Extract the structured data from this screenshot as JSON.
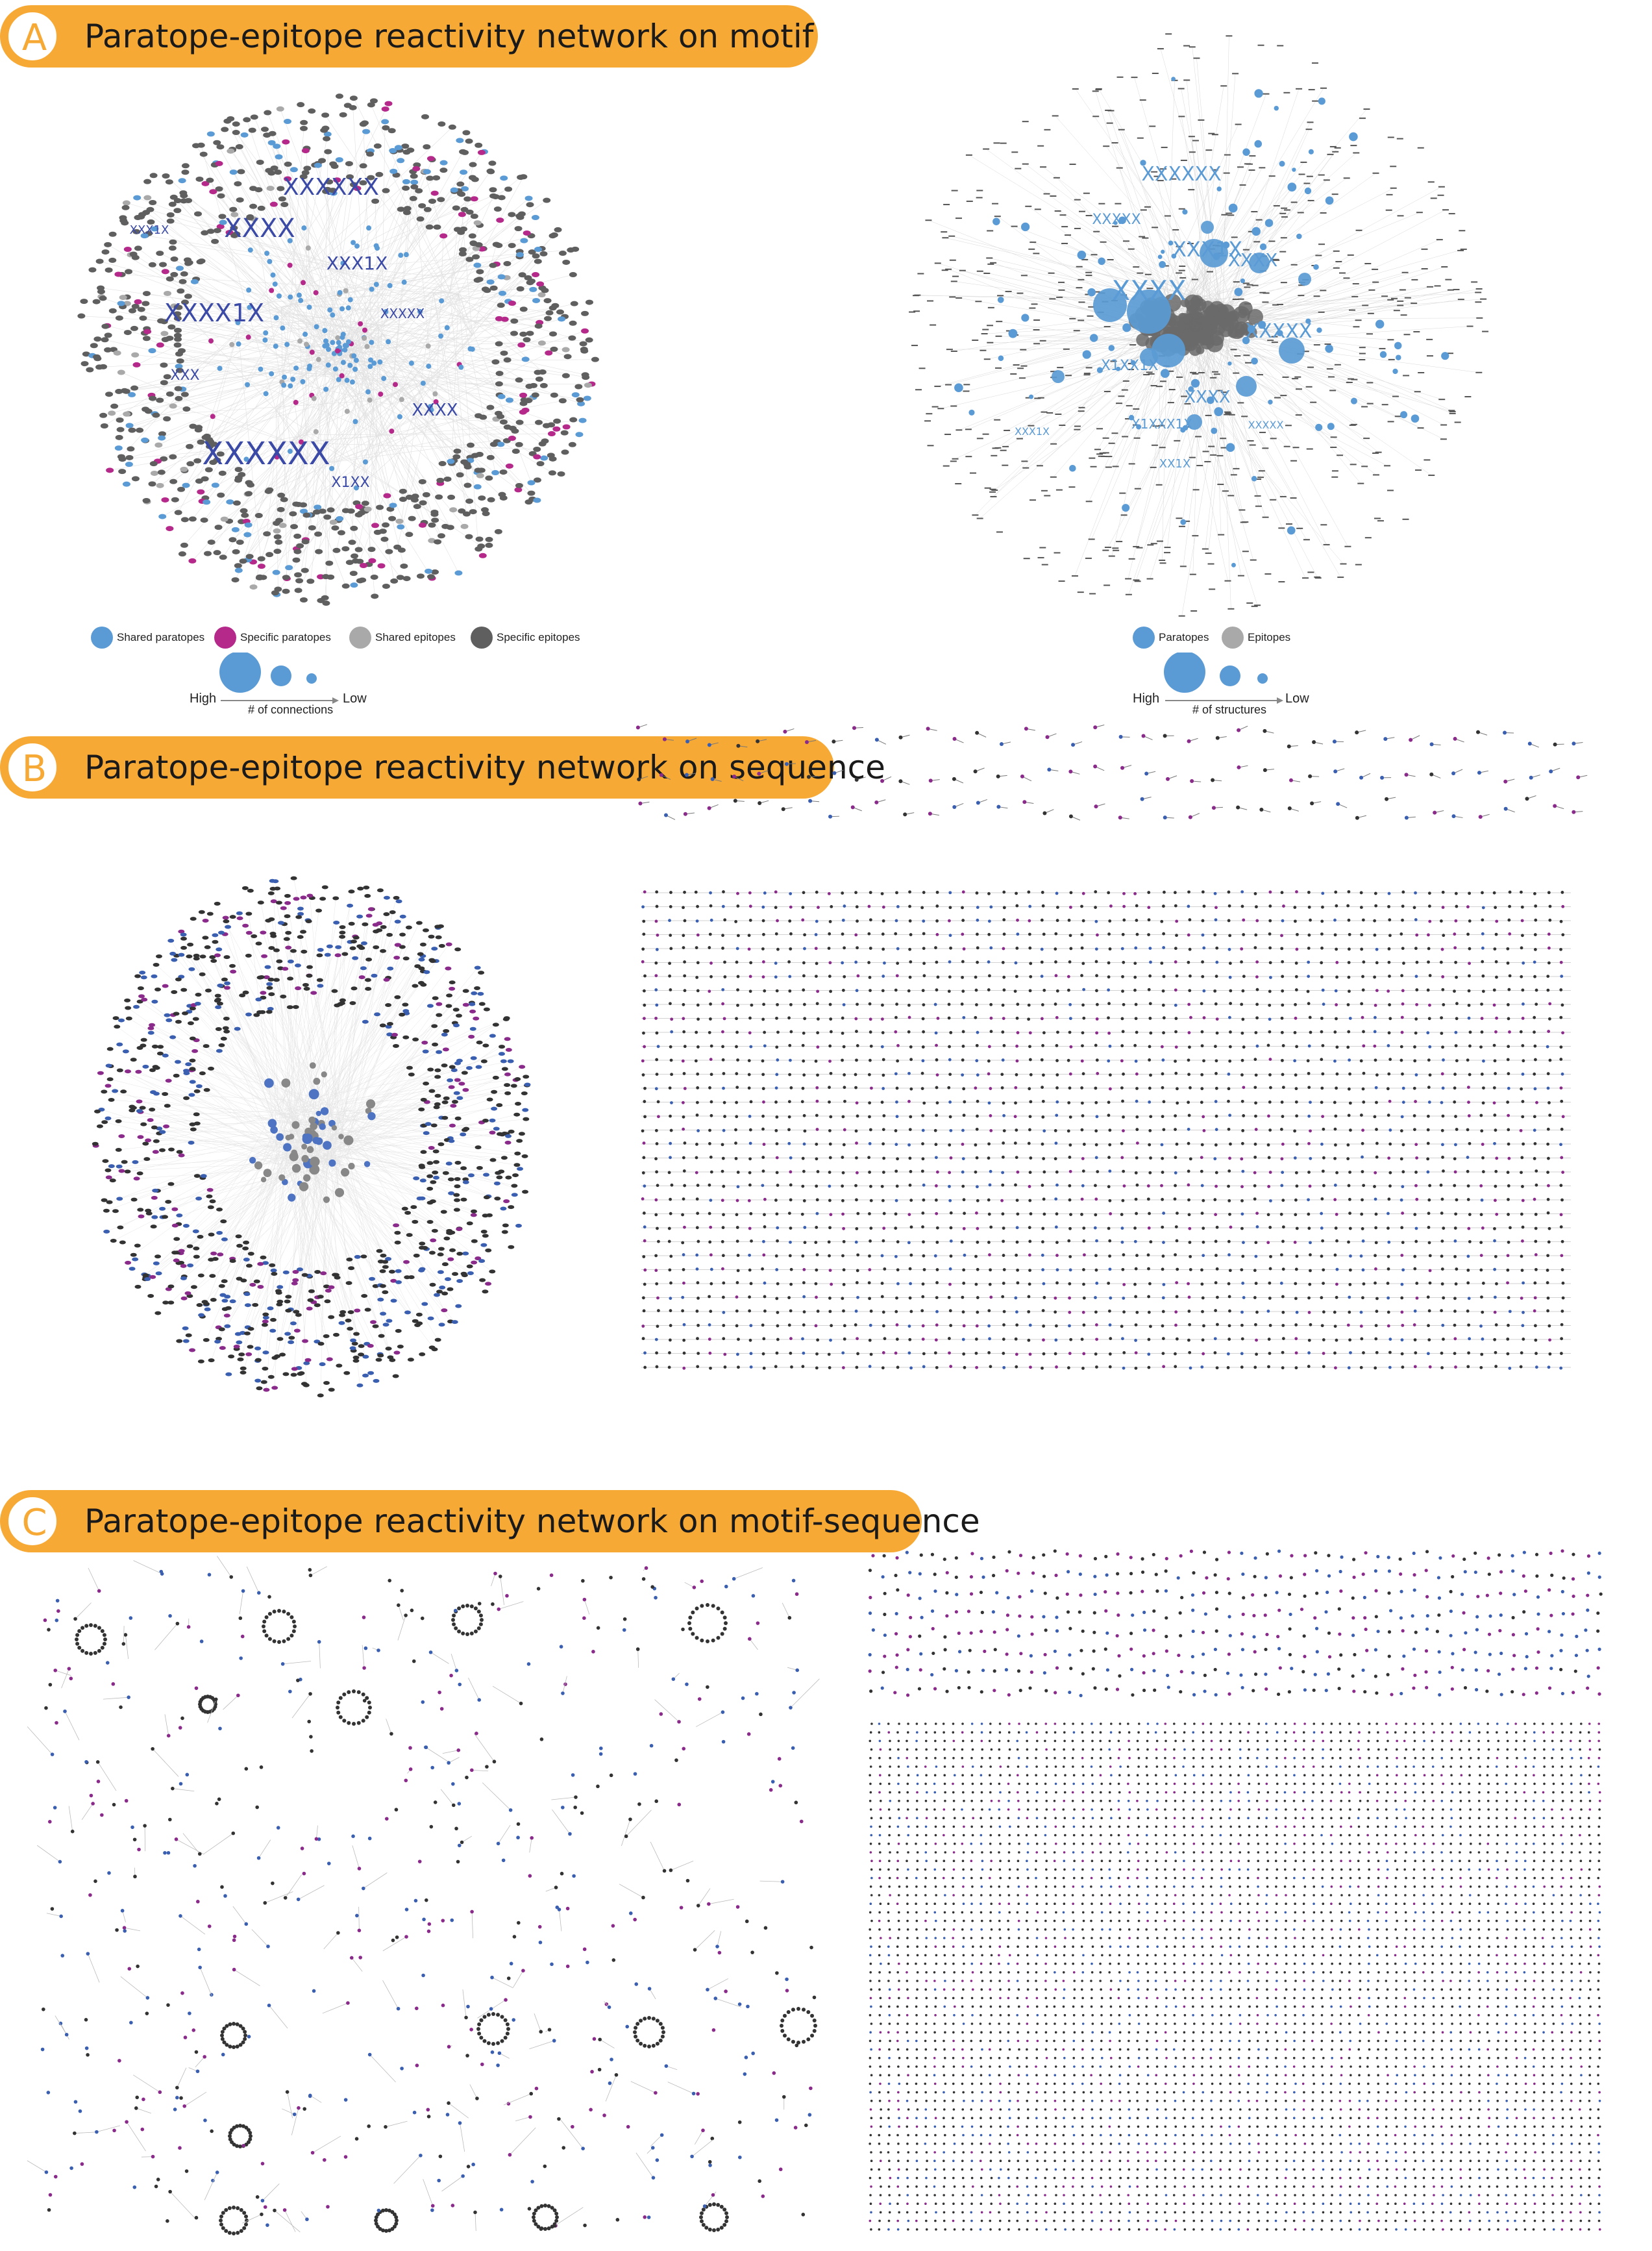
{
  "panels": {
    "a": {
      "letter": "A",
      "title": "Paratope-epitope reactivity network on motif"
    },
    "b": {
      "letter": "B",
      "title": "Paratope-epitope reactivity network on sequence"
    },
    "c": {
      "letter": "C",
      "title": "Paratope-epitope reactivity network on motif-sequence"
    }
  },
  "legend_left": {
    "items": [
      {
        "label": "Shared paratopes",
        "color": "#5b9bd5"
      },
      {
        "label": "Specific paratopes",
        "color": "#b5298a"
      },
      {
        "label": "Shared epitopes",
        "color": "#a9a9a9"
      },
      {
        "label": "Specific epitopes",
        "color": "#5f5f5f"
      }
    ],
    "high": "High",
    "low": "Low",
    "scale_label": "# of connections"
  },
  "legend_right": {
    "items": [
      {
        "label": "Paratopes",
        "color": "#5b9bd5"
      },
      {
        "label": "Epitopes",
        "color": "#a9a9a9"
      }
    ],
    "high": "High",
    "low": "Low",
    "scale_label": "# of structures"
  },
  "motif_labels_left": [
    "XXXXXX",
    "XXXX",
    "XXX1X",
    "XXXX1X",
    "XXXXX",
    "XXX",
    "XXXX",
    "XXXXXX",
    "X1XX",
    "XXX1X"
  ],
  "motif_labels_right": [
    "XXXXXX",
    "XXXXX",
    "XXX1X",
    "XXXX",
    "XXXX",
    "XXXXX",
    "XXXX",
    "X1XX1X",
    "XXXXX",
    "XX1X",
    "XXX1X",
    "X1XXX1X"
  ],
  "colors": {
    "banner": "#f7a935",
    "shared_paratope": "#5b9bd5",
    "specific_paratope": "#b5298a",
    "shared_epitope": "#a9a9a9",
    "specific_epitope": "#5f5f5f",
    "sequence_paratope": "#3a5fb0",
    "sequence_specific": "#8a2a8a",
    "epitope_dark": "#333333",
    "edge": "#c8c8c8",
    "label_blue": "#3b4aa6"
  }
}
